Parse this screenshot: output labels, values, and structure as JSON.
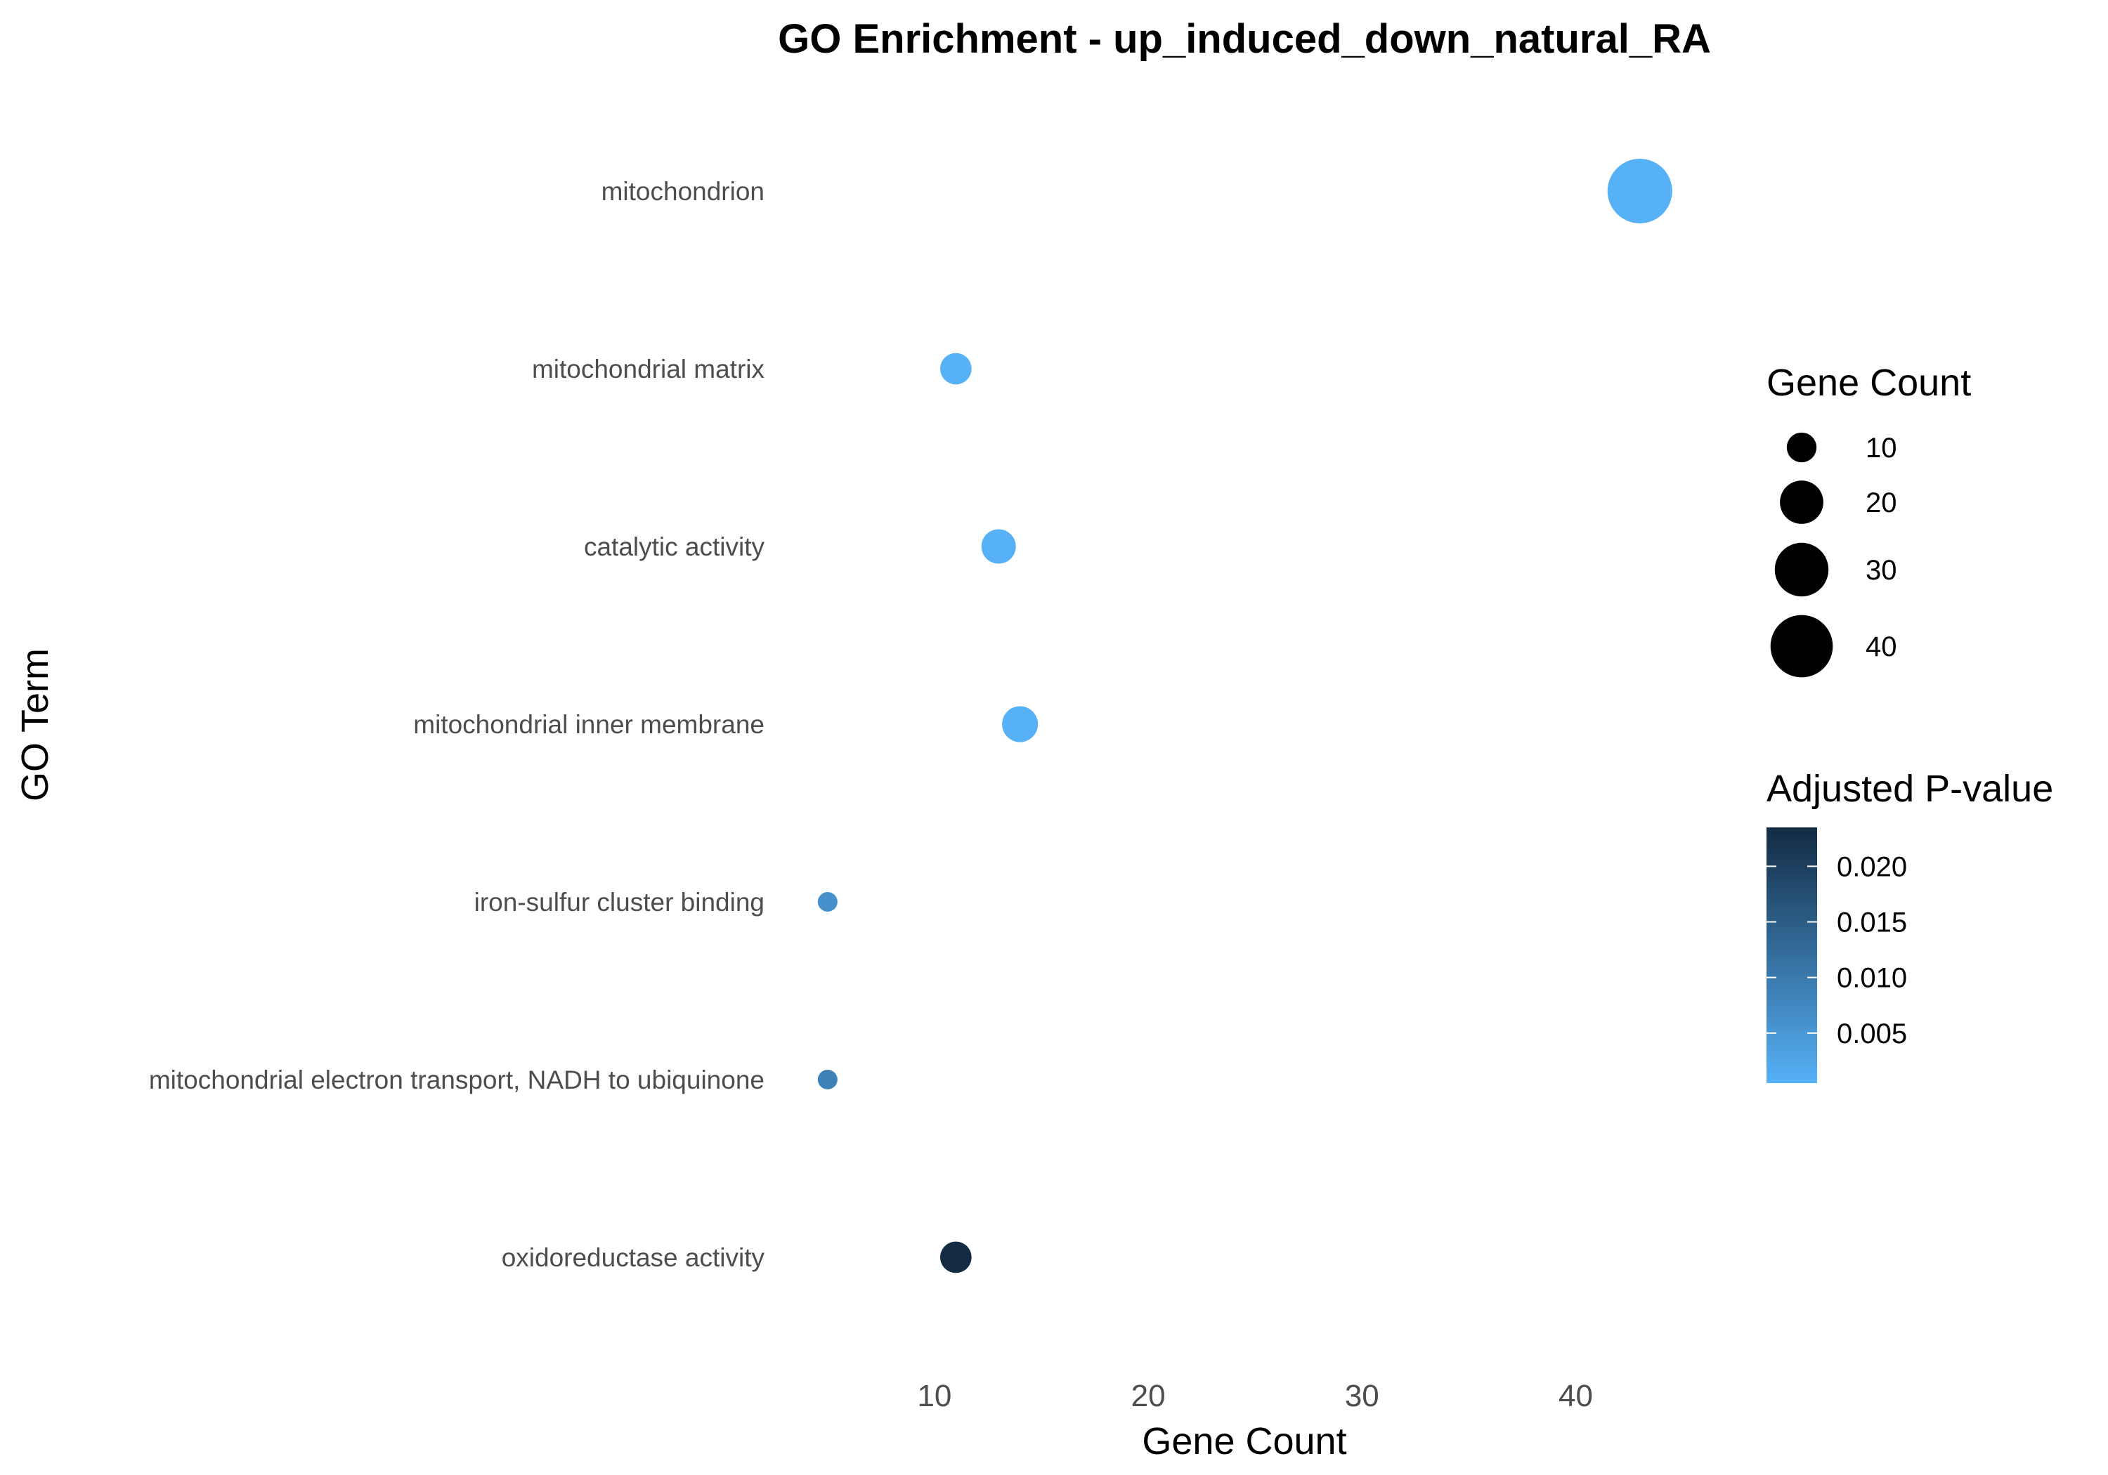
{
  "chart_data": {
    "type": "scatter",
    "title": "GO Enrichment - up_induced_down_natural_RA",
    "xlabel": "Gene Count",
    "ylabel": "GO Term",
    "xlim": [
      3,
      46
    ],
    "xticks": [
      10,
      20,
      30,
      40
    ],
    "grid": false,
    "legend_placement": "right",
    "color_low": "#56B1F7",
    "color_high": "#132B43",
    "points": [
      {
        "term": "mitochondrion",
        "count": 43,
        "padj": 0.0005
      },
      {
        "term": "mitochondrial matrix",
        "count": 11,
        "padj": 0.0005
      },
      {
        "term": "catalytic activity",
        "count": 13,
        "padj": 0.0005
      },
      {
        "term": "mitochondrial inner membrane",
        "count": 14,
        "padj": 0.0005
      },
      {
        "term": "iron-sulfur cluster binding",
        "count": 5,
        "padj": 0.006
      },
      {
        "term": "mitochondrial electron transport, NADH to ubiquinone",
        "count": 5,
        "padj": 0.0085
      },
      {
        "term": "oxidoreductase activity",
        "count": 11,
        "padj": 0.0235
      }
    ],
    "size_legend": {
      "title": "Gene Count",
      "entries": [
        {
          "label": "10",
          "value": 10
        },
        {
          "label": "20",
          "value": 20
        },
        {
          "label": "30",
          "value": 30
        },
        {
          "label": "40",
          "value": 40
        }
      ]
    },
    "color_legend": {
      "title": "Adjusted P-value",
      "range": [
        0.0005,
        0.0235
      ],
      "ticks": [
        {
          "label": "0.020",
          "value": 0.02
        },
        {
          "label": "0.015",
          "value": 0.015
        },
        {
          "label": "0.010",
          "value": 0.01
        },
        {
          "label": "0.005",
          "value": 0.005
        }
      ]
    }
  }
}
